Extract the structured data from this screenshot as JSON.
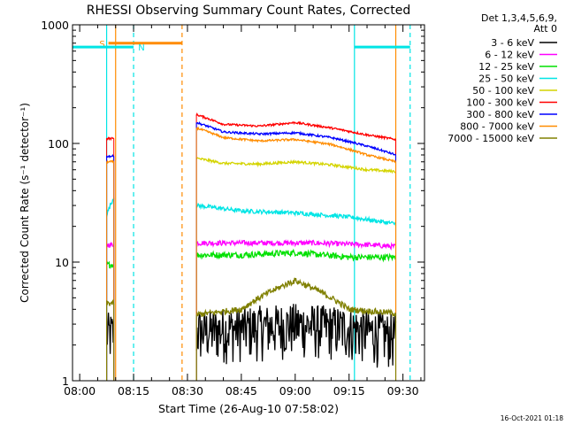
{
  "chart_data": {
    "type": "line",
    "title": "RHESSI Observing Summary Count Rates, Corrected",
    "xlabel": "Start Time (26-Aug-10 07:58:02)",
    "ylabel": "Corrected Count Rate (s⁻¹ detector⁻¹)",
    "x_unit": "minutes after 08:00 UT",
    "xlim": [
      -2,
      96
    ],
    "ylim": [
      1,
      1000
    ],
    "yscale": "log",
    "x_ticks": [
      {
        "value": 0,
        "label": "08:00"
      },
      {
        "value": 15,
        "label": "08:15"
      },
      {
        "value": 30,
        "label": "08:30"
      },
      {
        "value": 45,
        "label": "08:45"
      },
      {
        "value": 60,
        "label": "09:00"
      },
      {
        "value": 75,
        "label": "09:15"
      },
      {
        "value": 90,
        "label": "09:30"
      }
    ],
    "y_ticks": [
      {
        "value": 1,
        "label": "1"
      },
      {
        "value": 10,
        "label": "10"
      },
      {
        "value": 100,
        "label": "100"
      },
      {
        "value": 1000,
        "label": "1000"
      }
    ],
    "legend": {
      "placement": "right",
      "header": [
        "Det 1,3,4,5,6,9,",
        "Att 0"
      ]
    },
    "series": [
      {
        "name": "3 - 6 keV",
        "color": "#000000",
        "noise": 0.5,
        "segments": [
          {
            "x": [
              7.5,
              9.5
            ],
            "y": [
              2.5,
              2.5
            ]
          },
          {
            "x": [
              32.5,
              45,
              60,
              75,
              88
            ],
            "y": [
              2.6,
              2.8,
              3.0,
              2.8,
              2.4
            ]
          }
        ]
      },
      {
        "name": "6 - 12 keV",
        "color": "#ff00ff",
        "noise": 0.05,
        "segments": [
          {
            "x": [
              7.5,
              9.5
            ],
            "y": [
              14,
              14
            ]
          },
          {
            "x": [
              32.5,
              50,
              65,
              80,
              88
            ],
            "y": [
              14.5,
              14.5,
              14.5,
              14,
              13.5
            ]
          }
        ]
      },
      {
        "name": "12 - 25 keV",
        "color": "#00e000",
        "noise": 0.06,
        "segments": [
          {
            "x": [
              7.5,
              9.5
            ],
            "y": [
              9.5,
              9.5
            ]
          },
          {
            "x": [
              32.5,
              45,
              60,
              75,
              88
            ],
            "y": [
              11.5,
              11.5,
              12,
              11,
              11
            ]
          }
        ]
      },
      {
        "name": "25 - 50 keV",
        "color": "#00e5e5",
        "noise": 0.04,
        "segments": [
          {
            "x": [
              7.5,
              9.5
            ],
            "y": [
              25,
              35
            ]
          },
          {
            "x": [
              32.5,
              45,
              60,
              75,
              88
            ],
            "y": [
              30,
              27,
              26,
              24,
              21
            ]
          }
        ]
      },
      {
        "name": "50 - 100 keV",
        "color": "#d4d400",
        "noise": 0.025,
        "segments": [
          {
            "x": [
              32.5,
              40,
              50,
              60,
              70,
              80,
              88
            ],
            "y": [
              75,
              68,
              67,
              70,
              66,
              60,
              58
            ]
          }
        ]
      },
      {
        "name": "100 - 300 keV",
        "color": "#ff0000",
        "noise": 0.02,
        "segments": [
          {
            "x": [
              7.5,
              9.5
            ],
            "y": [
              110,
              110
            ]
          },
          {
            "x": [
              32.5,
              40,
              50,
              60,
              70,
              80,
              88
            ],
            "y": [
              175,
              145,
              140,
              150,
              135,
              118,
              108
            ]
          }
        ]
      },
      {
        "name": "300 - 800 keV",
        "color": "#0000ff",
        "noise": 0.02,
        "segments": [
          {
            "x": [
              7.5,
              9.5
            ],
            "y": [
              78,
              78
            ]
          },
          {
            "x": [
              32.5,
              40,
              50,
              60,
              70,
              80,
              88
            ],
            "y": [
              150,
              125,
              120,
              123,
              112,
              95,
              80
            ]
          }
        ]
      },
      {
        "name": "800 - 7000 keV",
        "color": "#ff8c00",
        "noise": 0.02,
        "segments": [
          {
            "x": [
              7.5,
              9.5
            ],
            "y": [
              70,
              70
            ]
          },
          {
            "x": [
              32.5,
              40,
              50,
              60,
              70,
              80,
              88
            ],
            "y": [
              135,
              112,
              105,
              108,
              98,
              80,
              70
            ]
          }
        ]
      },
      {
        "name": "7000 - 15000 keV",
        "color": "#808000",
        "noise": 0.06,
        "segments": [
          {
            "x": [
              7.5,
              9.5
            ],
            "y": [
              4.5,
              4.5
            ]
          },
          {
            "x": [
              32.5,
              45,
              55,
              60,
              65,
              75,
              88
            ],
            "y": [
              3.6,
              4.0,
              6.0,
              7.0,
              6.0,
              4.0,
              3.7
            ]
          }
        ]
      }
    ],
    "saa_bar": {
      "label": "S",
      "color": "#ff8c00",
      "x": [
        8,
        28.5
      ],
      "y": 700
    },
    "night_bar": {
      "label": "N",
      "color": "#00e5e5",
      "segments": [
        [
          -2,
          15
        ],
        [
          76.5,
          92
        ]
      ],
      "y": 650
    },
    "vlines": [
      {
        "x": 7.5,
        "color": "#00e5e5",
        "style": "solid"
      },
      {
        "x": 10,
        "color": "#ff8c00",
        "style": "solid"
      },
      {
        "x": 15,
        "color": "#00e5e5",
        "style": "dashed"
      },
      {
        "x": 28.5,
        "color": "#ff8c00",
        "style": "dashed"
      },
      {
        "x": 76.5,
        "color": "#00e5e5",
        "style": "solid"
      },
      {
        "x": 88,
        "color": "#ff8c00",
        "style": "solid"
      },
      {
        "x": 92,
        "color": "#00e5e5",
        "style": "dashed"
      }
    ],
    "timestamp": "16-Oct-2021 01:18"
  }
}
